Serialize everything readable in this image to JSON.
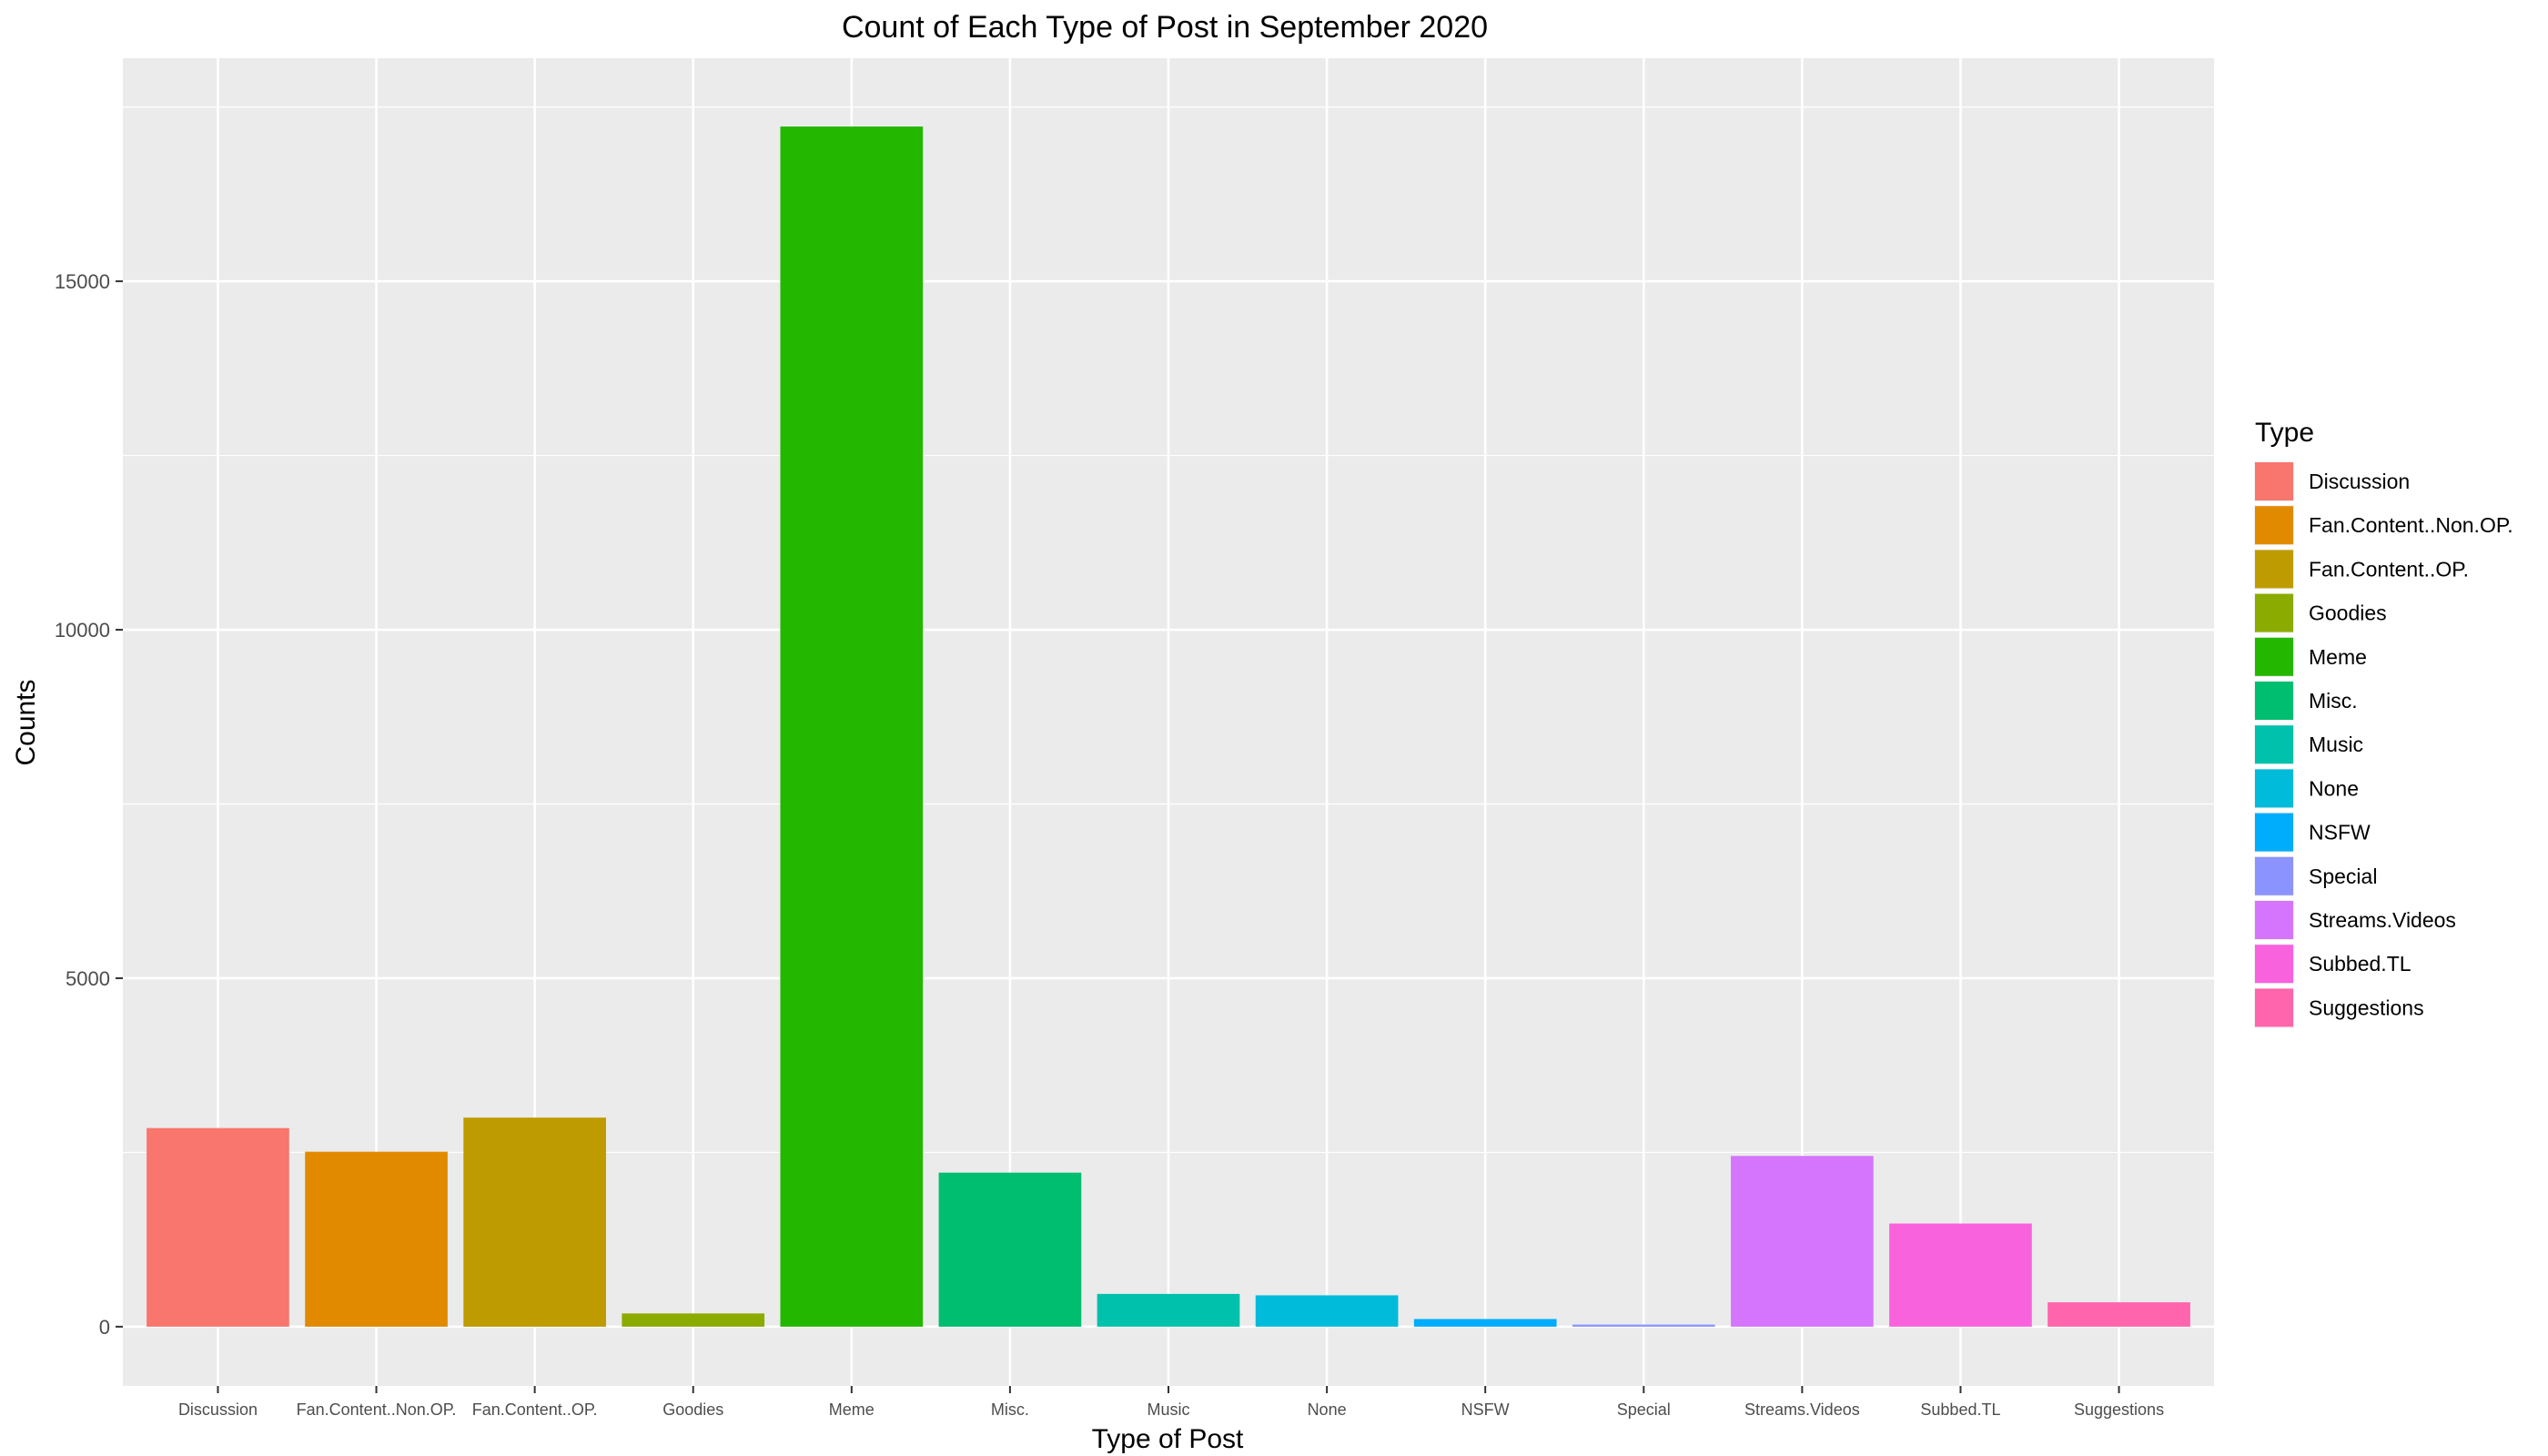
{
  "chart_data": {
    "type": "bar",
    "title": "Count of Each Type of Post in September 2020",
    "xlabel": "Type of Post",
    "ylabel": "Counts",
    "categories": [
      "Discussion",
      "Fan.Content..Non.OP.",
      "Fan.Content..OP.",
      "Goodies",
      "Meme",
      "Misc.",
      "Music",
      "None",
      "NSFW",
      "Special",
      "Streams.Videos",
      "Subbed.TL",
      "Suggestions"
    ],
    "values": [
      2850,
      2510,
      3000,
      190,
      17220,
      2210,
      470,
      450,
      110,
      30,
      2450,
      1480,
      350
    ],
    "colors": [
      "#F8766D",
      "#E18A00",
      "#BE9C00",
      "#8CAB00",
      "#24B700",
      "#00BE70",
      "#00C1AB",
      "#00BBDA",
      "#00ACFC",
      "#8B93FF",
      "#D575FE",
      "#F962DD",
      "#FF65AC"
    ],
    "ylim": [
      -850,
      18200
    ],
    "yticks": [
      0,
      5000,
      10000,
      15000
    ],
    "grid": true,
    "background": "#EBEBEB",
    "legend": {
      "title": "Type",
      "placement": "right"
    }
  }
}
